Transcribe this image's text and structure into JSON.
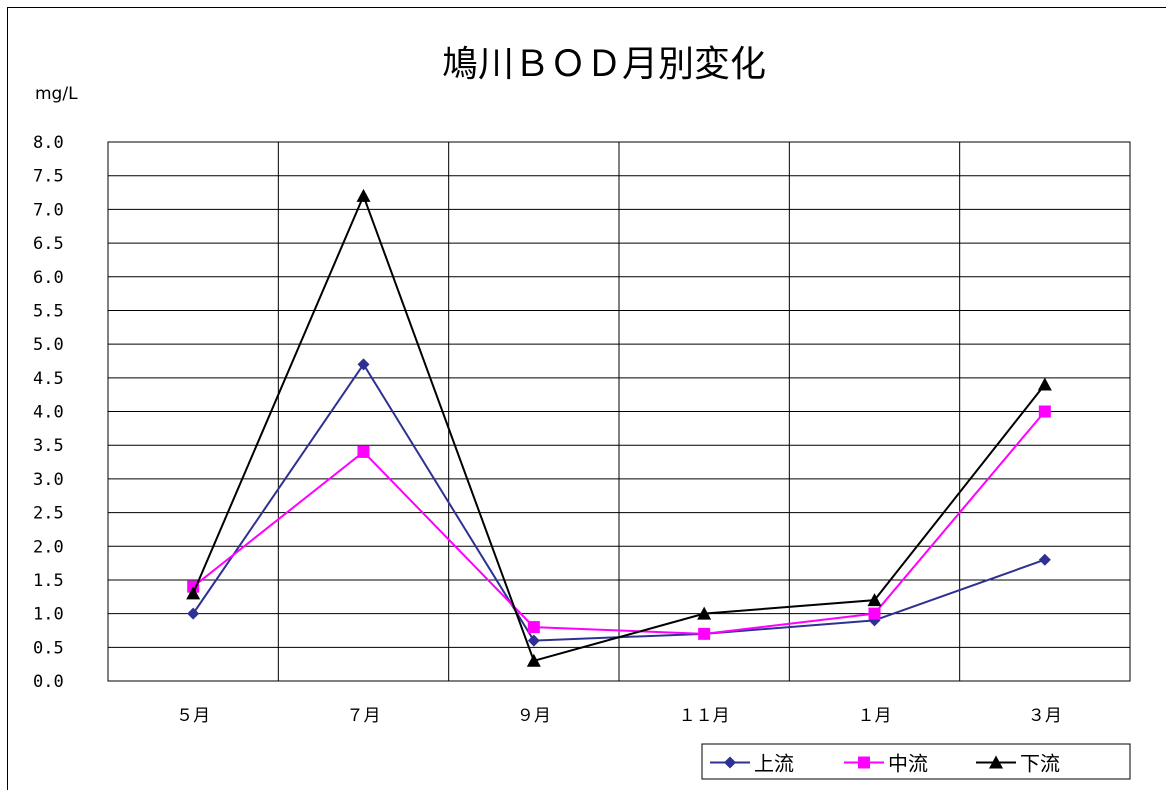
{
  "chart_data": {
    "type": "line",
    "title": "鳩川ＢＯＤ月別変化",
    "ylabel": "mg/L",
    "xlabel": "",
    "categories": [
      "５月",
      "７月",
      "９月",
      "１１月",
      "１月",
      "３月"
    ],
    "ylim": [
      0,
      8
    ],
    "ytick_labels": [
      "0.0",
      "0.5",
      "1.0",
      "1.5",
      "2.0",
      "2.5",
      "3.0",
      "3.5",
      "4.0",
      "4.5",
      "5.0",
      "5.5",
      "6.0",
      "6.5",
      "7.0",
      "7.5",
      "8.0"
    ],
    "grid": true,
    "legend_position": "bottom-right",
    "series": [
      {
        "name": "上流",
        "values": [
          1.0,
          4.7,
          0.6,
          0.7,
          0.9,
          1.8
        ],
        "color": "#2E3192",
        "marker": "diamond"
      },
      {
        "name": "中流",
        "values": [
          1.4,
          3.4,
          0.8,
          0.7,
          1.0,
          4.0
        ],
        "color": "#FF00FF",
        "marker": "square"
      },
      {
        "name": "下流",
        "values": [
          1.3,
          7.2,
          0.3,
          1.0,
          1.2,
          4.4
        ],
        "color": "#000000",
        "marker": "triangle"
      }
    ]
  }
}
